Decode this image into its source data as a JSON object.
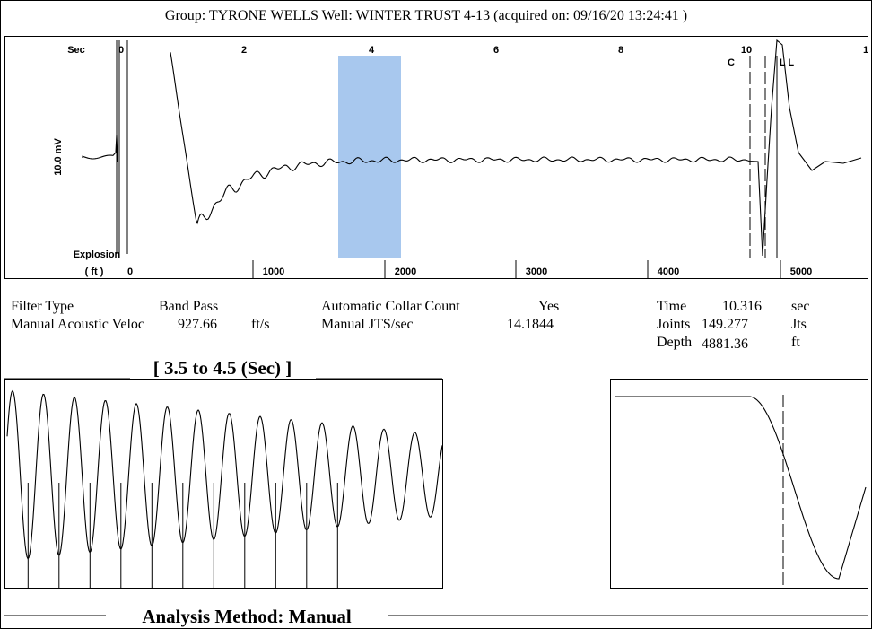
{
  "header": {
    "title": "Group: TYRONE WELLS     Well: WINTER TRUST 4-13 (acquired on: 09/16/20 13:24:41 )"
  },
  "trace": {
    "time_unit": "Sec",
    "time_ticks": [
      "0",
      "2",
      "4",
      "6",
      "8",
      "10",
      "1"
    ],
    "markers": [
      "C",
      "L L"
    ],
    "amplitude_label": "10.0 mV",
    "start_label": "Explosion",
    "depth_unit": "( ft )",
    "depth_ticks": [
      "0",
      "1000",
      "2000",
      "3000",
      "4000",
      "5000"
    ]
  },
  "info": {
    "filter_type": {
      "label": "Filter Type",
      "value": "Band Pass"
    },
    "manual_velocity": {
      "label": "Manual Acoustic Veloc",
      "value": "927.66",
      "unit": "ft/s"
    },
    "collar_count": {
      "label": "Automatic Collar Count",
      "value": "Yes"
    },
    "manual_jts": {
      "label": "Manual JTS/sec",
      "value": "14.1844"
    },
    "time": {
      "label": "Time",
      "value": "10.316",
      "unit": "sec"
    },
    "joints": {
      "label": "Joints",
      "value": "149.277",
      "unit": "Jts"
    },
    "depth": {
      "label": "Depth",
      "value": "4881.36",
      "unit": "ft"
    }
  },
  "window_title": "[ 3.5  to  4.5 (Sec) ]",
  "analysis_method": "Analysis Method:   Manual"
}
